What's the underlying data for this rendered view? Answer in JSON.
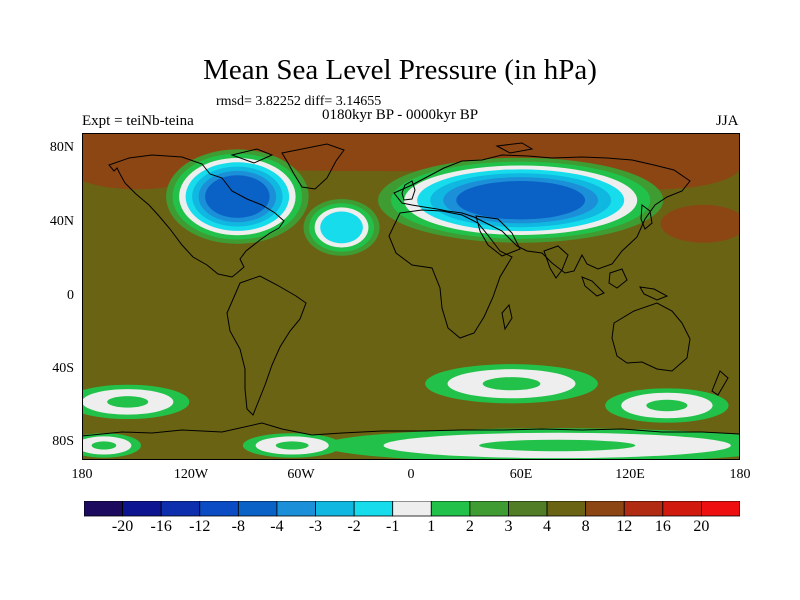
{
  "title": "Mean Sea Level Pressure (in hPa)",
  "stats": "rmsd= 3.82252 diff= 3.14655",
  "period": "0180kyr BP - 0000kyr BP",
  "experiment": "Expt = teiNb-teina",
  "season": "JJA",
  "lat_labels": [
    "80N",
    "40N",
    "0",
    "40S",
    "80S"
  ],
  "lon_labels": [
    "180",
    "120W",
    "60W",
    "0",
    "60E",
    "120E",
    "180"
  ],
  "colorbar": {
    "labels": [
      "-20",
      "-16",
      "-12",
      "-8",
      "-4",
      "-3",
      "-2",
      "-1",
      "1",
      "2",
      "3",
      "4",
      "8",
      "12",
      "16",
      "20"
    ],
    "colors": [
      "#1c0a5e",
      "#0e1590",
      "#0d2fae",
      "#0b4cc4",
      "#0a62c6",
      "#1b8fd8",
      "#10b7e0",
      "#16dcec",
      "#eeeeee",
      "#22c24a",
      "#3e9c33",
      "#527d27",
      "#6a6314",
      "#8c4613",
      "#b02b12",
      "#d01a0e",
      "#ee1010"
    ]
  },
  "chart_data": {
    "type": "heatmap",
    "title": "Mean Sea Level Pressure (in hPa)",
    "units": "hPa",
    "subtitle": "0180kyr BP - 0000kyr BP",
    "season": "JJA",
    "experiment": "Expt = teiNb-teina",
    "stats": {
      "rmsd": 3.82252,
      "diff": 3.14655
    },
    "lon_range": [
      -180,
      180
    ],
    "lat_range": [
      -90,
      90
    ],
    "levels": [
      -20,
      -16,
      -12,
      -8,
      -4,
      -3,
      -2,
      -1,
      1,
      2,
      3,
      4,
      8,
      12,
      16,
      20
    ],
    "background_value": 4,
    "features": [
      {
        "name": "arctic-ocean-high",
        "lon": 0,
        "lat": 82,
        "rlon": 200,
        "rlat": 10,
        "value": 10
      },
      {
        "name": "north-pacific-high",
        "lon": -150,
        "lat": 72,
        "rlon": 30,
        "rlat": 10,
        "value": 10
      },
      {
        "name": "siberia-high",
        "lon": 135,
        "lat": 72,
        "rlon": 35,
        "rlat": 10,
        "value": 10
      },
      {
        "name": "northwest-pacific-high",
        "lon": 160,
        "lat": 40,
        "rlon": 18,
        "rlat": 8,
        "value": 10
      },
      {
        "name": "tropical-pacific-high",
        "lon": -150,
        "lat": 5,
        "rlon": 30,
        "rlat": 12,
        "value": 5
      },
      {
        "name": "north-america-low",
        "lon": -95,
        "lat": 55,
        "rlon": 30,
        "rlat": 20,
        "value": -5
      },
      {
        "name": "north-atlantic-low",
        "lon": -38,
        "lat": 38,
        "rlon": 16,
        "rlat": 12,
        "value": -2
      },
      {
        "name": "eurasia-low",
        "lon": 60,
        "lat": 53,
        "rlon": 60,
        "rlat": 18,
        "value": -6
      },
      {
        "name": "south-indian-ocean-ring",
        "lon": 55,
        "lat": -48,
        "rlon": 35,
        "rlat": 8,
        "value": 0
      },
      {
        "name": "southern-ocean-ring-east",
        "lon": 140,
        "lat": -60,
        "rlon": 25,
        "rlat": 7,
        "value": 0
      },
      {
        "name": "southern-ocean-ring-west",
        "lon": -155,
        "lat": -58,
        "rlon": 25,
        "rlat": 7,
        "value": 0
      },
      {
        "name": "antarctica-ring",
        "lon": 80,
        "lat": -82,
        "rlon": 95,
        "rlat": 7,
        "value": 0
      },
      {
        "name": "weddell-sea-ring",
        "lon": -65,
        "lat": -82,
        "rlon": 20,
        "rlat": 5,
        "value": 0
      },
      {
        "name": "ross-sea-ring",
        "lon": -168,
        "lat": -82,
        "rlon": 15,
        "rlat": 5,
        "value": 0
      }
    ]
  }
}
